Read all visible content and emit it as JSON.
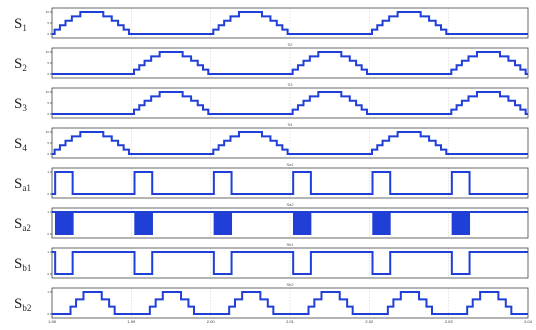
{
  "chart_data": {
    "type": "line",
    "x": {
      "range": [
        0,
        3
      ],
      "ticks": [
        "1.98",
        "1.99",
        "2.00",
        "2.01",
        "2.02",
        "2.03",
        "2.04"
      ]
    },
    "panels": [
      {
        "label_main": "S",
        "label_sub": "1",
        "title": "",
        "kind": "stepped_halfwave",
        "phase": 0.0,
        "period": 1.0,
        "levels": 5,
        "y_ticks": [
          "10",
          "5",
          "0"
        ],
        "ylim": [
          0,
          10
        ]
      },
      {
        "label_main": "S",
        "label_sub": "2",
        "title": "S2",
        "kind": "stepped_halfwave",
        "phase": 0.5,
        "period": 1.0,
        "levels": 5,
        "y_ticks": [
          "10",
          "5",
          "0"
        ],
        "ylim": [
          0,
          10
        ]
      },
      {
        "label_main": "S",
        "label_sub": "3",
        "title": "S3",
        "kind": "stepped_halfwave",
        "phase": 0.5,
        "period": 1.0,
        "levels": 5,
        "y_ticks": [
          "10",
          "5",
          "0"
        ],
        "ylim": [
          0,
          10
        ]
      },
      {
        "label_main": "S",
        "label_sub": "4",
        "title": "S4",
        "kind": "stepped_halfwave",
        "phase": 0.0,
        "period": 1.0,
        "levels": 5,
        "y_ticks": [
          "10",
          "5",
          "0"
        ],
        "ylim": [
          0,
          10
        ]
      },
      {
        "label_main": "S",
        "label_sub": "a1",
        "title": "Sa1",
        "kind": "square",
        "period": 0.5,
        "duty": 0.22,
        "phase": 0.02,
        "levels": 1,
        "y_ticks": [
          "1",
          "0"
        ],
        "ylim": [
          0,
          1
        ]
      },
      {
        "label_main": "S",
        "label_sub": "a2",
        "title": "Sa2",
        "kind": "pwm_square",
        "period": 0.5,
        "duty": 0.22,
        "phase": 0.02,
        "levels": 1,
        "y_ticks": [
          "1",
          "0"
        ],
        "ylim": [
          0,
          1
        ]
      },
      {
        "label_main": "S",
        "label_sub": "b1",
        "title": "Sb1",
        "kind": "square_low",
        "period": 0.5,
        "duty": 0.22,
        "phase": 0.02,
        "levels": 1,
        "y_ticks": [
          "1",
          "0"
        ],
        "ylim": [
          0,
          1
        ]
      },
      {
        "label_main": "S",
        "label_sub": "b2",
        "title": "Sb2",
        "kind": "stepped_pulse",
        "period": 0.5,
        "duty": 0.62,
        "phase": 0.1,
        "levels": 3,
        "y_ticks": [
          "1",
          "0"
        ],
        "ylim": [
          0,
          1
        ]
      }
    ],
    "colors": {
      "trace": "#1f3fd6"
    },
    "grid": true
  }
}
